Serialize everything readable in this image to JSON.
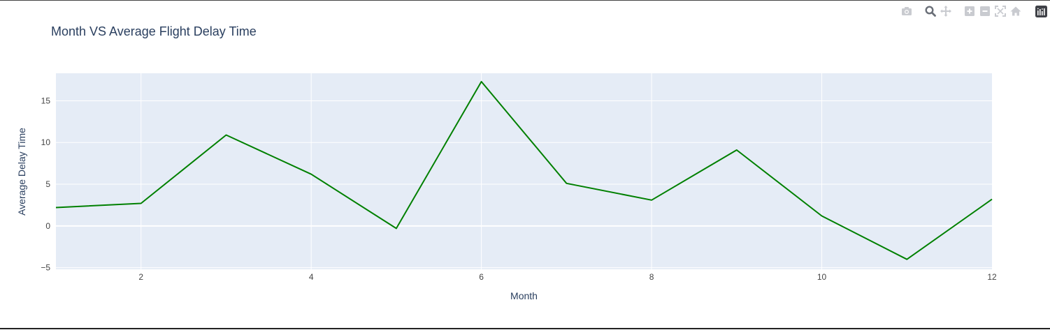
{
  "chart_data": {
    "type": "line",
    "title": "Month VS Average Flight Delay Time",
    "xlabel": "Month",
    "ylabel": "Average Delay Time",
    "xlim": [
      1,
      12
    ],
    "ylim": [
      -5.2,
      18.3
    ],
    "xticks": [
      2,
      4,
      6,
      8,
      10,
      12
    ],
    "yticks": [
      -5,
      0,
      5,
      10,
      15
    ],
    "xtick_labels": [
      "2",
      "4",
      "6",
      "8",
      "10",
      "12"
    ],
    "ytick_labels": [
      "−5",
      "0",
      "5",
      "10",
      "15"
    ],
    "grid": true,
    "legend": "none",
    "line_color": "#008000",
    "plot_bg": "#e5ecf6",
    "series": [
      {
        "x": [
          1,
          2,
          3,
          4,
          5,
          6,
          7,
          8,
          9,
          10,
          11,
          12
        ],
        "values": [
          2.2,
          2.7,
          10.9,
          6.2,
          -0.3,
          17.3,
          5.1,
          3.1,
          9.1,
          1.2,
          -4.0,
          3.2
        ]
      }
    ]
  },
  "modebar": {
    "icons": [
      "camera-icon",
      "zoom-icon",
      "pan-icon",
      "zoom-in-icon",
      "zoom-out-icon",
      "autoscale-icon",
      "home-icon",
      "plotly-logo-icon"
    ]
  }
}
